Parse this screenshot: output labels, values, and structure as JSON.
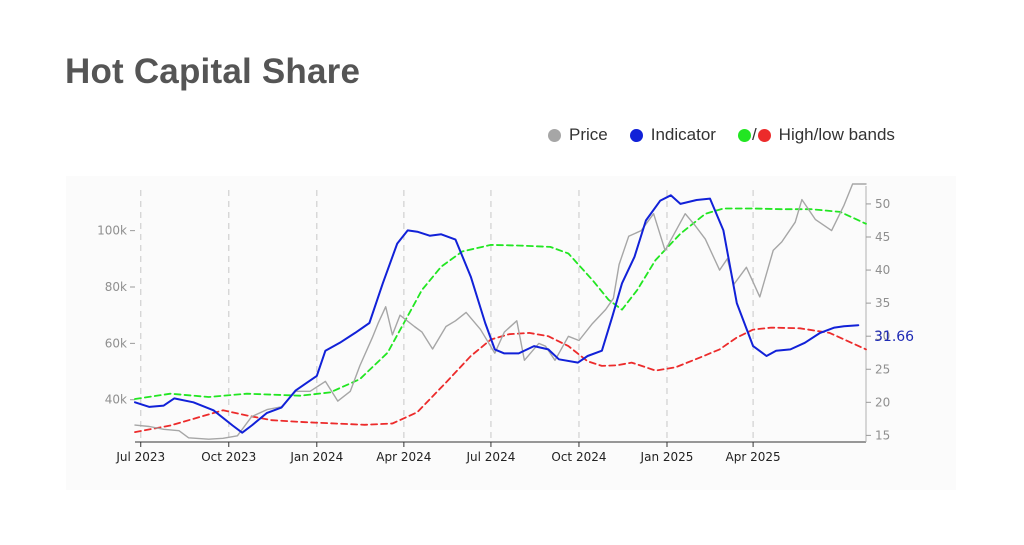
{
  "page": {
    "title": "Hot Capital Share"
  },
  "legend": {
    "price": {
      "label": "Price",
      "color": "#a6a6a6"
    },
    "indicator": {
      "label": "Indicator",
      "color": "#1121d8"
    },
    "bands": {
      "label": "High/low bands",
      "slash": "/",
      "high_color": "#22e622",
      "low_color": "#ec2b2b"
    }
  },
  "chart_data": {
    "type": "line",
    "title": "Hot Capital Share",
    "x_range": [
      "2023-06-25",
      "2025-07-28"
    ],
    "x_ticks": [
      {
        "date": "2023-07-01",
        "label": "Jul 2023"
      },
      {
        "date": "2023-10-01",
        "label": "Oct 2023"
      },
      {
        "date": "2024-01-01",
        "label": "Jan 2024"
      },
      {
        "date": "2024-04-01",
        "label": "Apr 2024"
      },
      {
        "date": "2024-07-01",
        "label": "Jul 2024"
      },
      {
        "date": "2024-10-01",
        "label": "Oct 2024"
      },
      {
        "date": "2025-01-01",
        "label": "Jan 2025"
      },
      {
        "date": "2025-04-01",
        "label": "Apr 2025"
      }
    ],
    "y_left": {
      "label": "Price",
      "range": [
        25000,
        113000
      ],
      "ticks": [
        40000,
        60000,
        80000,
        100000
      ],
      "tick_labels": [
        "40k",
        "60k",
        "80k",
        "100k"
      ]
    },
    "y_right": {
      "label": "Indicator",
      "range": [
        14,
        51.5
      ],
      "ticks": [
        15,
        20,
        25,
        30,
        35,
        40,
        45,
        50
      ],
      "tick_labels": [
        "15",
        "20",
        "25",
        "30",
        "35",
        "40",
        "45",
        "50"
      ]
    },
    "grid": "vertical dashed at x ticks",
    "last_value_label": "31.66",
    "series": [
      {
        "name": "Price",
        "axis": "left",
        "color": "#a6a6a6",
        "style": "solid",
        "points": [
          [
            "2023-06-25",
            31000
          ],
          [
            "2023-07-10",
            30500
          ],
          [
            "2023-07-25",
            29500
          ],
          [
            "2023-08-10",
            29000
          ],
          [
            "2023-08-20",
            26500
          ],
          [
            "2023-09-10",
            26000
          ],
          [
            "2023-09-25",
            26300
          ],
          [
            "2023-10-10",
            27200
          ],
          [
            "2023-10-25",
            34000
          ],
          [
            "2023-11-10",
            36500
          ],
          [
            "2023-11-25",
            37500
          ],
          [
            "2023-12-10",
            43000
          ],
          [
            "2023-12-25",
            43000
          ],
          [
            "2024-01-10",
            46500
          ],
          [
            "2024-01-23",
            39500
          ],
          [
            "2024-02-05",
            43000
          ],
          [
            "2024-02-15",
            52000
          ],
          [
            "2024-02-28",
            62000
          ],
          [
            "2024-03-05",
            67000
          ],
          [
            "2024-03-13",
            73000
          ],
          [
            "2024-03-20",
            63000
          ],
          [
            "2024-03-28",
            70000
          ],
          [
            "2024-04-12",
            66000
          ],
          [
            "2024-04-20",
            64000
          ],
          [
            "2024-05-01",
            58000
          ],
          [
            "2024-05-15",
            66000
          ],
          [
            "2024-05-25",
            68000
          ],
          [
            "2024-06-05",
            71000
          ],
          [
            "2024-06-20",
            65000
          ],
          [
            "2024-07-05",
            56500
          ],
          [
            "2024-07-15",
            64000
          ],
          [
            "2024-07-28",
            68000
          ],
          [
            "2024-08-05",
            54000
          ],
          [
            "2024-08-20",
            60000
          ],
          [
            "2024-08-27",
            59000
          ],
          [
            "2024-09-06",
            54000
          ],
          [
            "2024-09-20",
            62500
          ],
          [
            "2024-10-01",
            61000
          ],
          [
            "2024-10-15",
            67000
          ],
          [
            "2024-10-29",
            72000
          ],
          [
            "2024-11-06",
            76000
          ],
          [
            "2024-11-12",
            88000
          ],
          [
            "2024-11-22",
            98000
          ],
          [
            "2024-12-05",
            100000
          ],
          [
            "2024-12-18",
            106000
          ],
          [
            "2024-12-30",
            93000
          ],
          [
            "2025-01-20",
            106000
          ],
          [
            "2025-01-30",
            102000
          ],
          [
            "2025-02-10",
            97000
          ],
          [
            "2025-02-25",
            86000
          ],
          [
            "2025-03-05",
            90000
          ],
          [
            "2025-03-12",
            81000
          ],
          [
            "2025-03-25",
            87000
          ],
          [
            "2025-04-08",
            76500
          ],
          [
            "2025-04-22",
            93000
          ],
          [
            "2025-05-01",
            96000
          ],
          [
            "2025-05-15",
            103000
          ],
          [
            "2025-05-22",
            111000
          ],
          [
            "2025-06-05",
            104000
          ],
          [
            "2025-06-22",
            100000
          ],
          [
            "2025-07-05",
            109000
          ],
          [
            "2025-07-14",
            118000
          ],
          [
            "2025-07-22",
            118000
          ],
          [
            "2025-07-28",
            118000
          ]
        ]
      },
      {
        "name": "Indicator",
        "axis": "right",
        "color": "#1121d8",
        "style": "solid",
        "points": [
          [
            "2023-06-25",
            20.0
          ],
          [
            "2023-07-10",
            19.3
          ],
          [
            "2023-07-25",
            19.5
          ],
          [
            "2023-08-05",
            20.6
          ],
          [
            "2023-08-25",
            20.0
          ],
          [
            "2023-09-15",
            18.8
          ],
          [
            "2023-10-05",
            16.5
          ],
          [
            "2023-10-15",
            15.4
          ],
          [
            "2023-10-25",
            16.5
          ],
          [
            "2023-11-10",
            18.4
          ],
          [
            "2023-11-25",
            19.2
          ],
          [
            "2023-12-10",
            21.8
          ],
          [
            "2024-01-01",
            24.0
          ],
          [
            "2024-01-10",
            27.8
          ],
          [
            "2024-01-25",
            29.0
          ],
          [
            "2024-02-10",
            30.5
          ],
          [
            "2024-02-25",
            32.0
          ],
          [
            "2024-03-10",
            38.0
          ],
          [
            "2024-03-25",
            44.0
          ],
          [
            "2024-04-05",
            46.0
          ],
          [
            "2024-04-15",
            45.8
          ],
          [
            "2024-04-28",
            45.2
          ],
          [
            "2024-05-10",
            45.4
          ],
          [
            "2024-05-25",
            44.6
          ],
          [
            "2024-06-10",
            39.0
          ],
          [
            "2024-06-25",
            32.0
          ],
          [
            "2024-07-05",
            28.0
          ],
          [
            "2024-07-15",
            27.4
          ],
          [
            "2024-07-30",
            27.4
          ],
          [
            "2024-08-15",
            28.5
          ],
          [
            "2024-08-30",
            28.0
          ],
          [
            "2024-09-10",
            26.5
          ],
          [
            "2024-09-30",
            26.0
          ],
          [
            "2024-10-10",
            27.0
          ],
          [
            "2024-10-25",
            27.8
          ],
          [
            "2024-11-05",
            33.0
          ],
          [
            "2024-11-15",
            38.0
          ],
          [
            "2024-11-28",
            42.0
          ],
          [
            "2024-12-10",
            47.5
          ],
          [
            "2024-12-25",
            50.5
          ],
          [
            "2025-01-05",
            51.3
          ],
          [
            "2025-01-15",
            50.0
          ],
          [
            "2025-02-01",
            50.6
          ],
          [
            "2025-02-15",
            50.8
          ],
          [
            "2025-03-01",
            46.0
          ],
          [
            "2025-03-15",
            35.0
          ],
          [
            "2025-04-01",
            28.5
          ],
          [
            "2025-04-15",
            27.0
          ],
          [
            "2025-04-25",
            27.8
          ],
          [
            "2025-05-10",
            28.0
          ],
          [
            "2025-05-25",
            29.0
          ],
          [
            "2025-06-10",
            30.5
          ],
          [
            "2025-06-25",
            31.3
          ],
          [
            "2025-07-05",
            31.5
          ],
          [
            "2025-07-20",
            31.66
          ]
        ]
      },
      {
        "name": "High band",
        "axis": "right",
        "color": "#22e622",
        "style": "dashed",
        "points": [
          [
            "2023-06-25",
            20.5
          ],
          [
            "2023-08-01",
            21.3
          ],
          [
            "2023-09-10",
            20.8
          ],
          [
            "2023-10-20",
            21.3
          ],
          [
            "2023-12-15",
            21.0
          ],
          [
            "2024-01-15",
            21.5
          ],
          [
            "2024-02-15",
            23.5
          ],
          [
            "2024-03-15",
            27.5
          ],
          [
            "2024-04-01",
            32.0
          ],
          [
            "2024-04-20",
            37.0
          ],
          [
            "2024-05-10",
            40.5
          ],
          [
            "2024-06-01",
            42.8
          ],
          [
            "2024-07-01",
            43.8
          ],
          [
            "2024-08-01",
            43.7
          ],
          [
            "2024-09-01",
            43.5
          ],
          [
            "2024-09-20",
            42.5
          ],
          [
            "2024-10-15",
            38.5
          ],
          [
            "2024-11-01",
            35.5
          ],
          [
            "2024-11-15",
            34.0
          ],
          [
            "2024-12-01",
            37.0
          ],
          [
            "2024-12-20",
            41.5
          ],
          [
            "2025-01-15",
            45.5
          ],
          [
            "2025-02-10",
            48.5
          ],
          [
            "2025-03-01",
            49.3
          ],
          [
            "2025-04-01",
            49.3
          ],
          [
            "2025-05-01",
            49.2
          ],
          [
            "2025-06-01",
            49.2
          ],
          [
            "2025-07-01",
            48.8
          ],
          [
            "2025-07-28",
            47.0
          ]
        ]
      },
      {
        "name": "Low band",
        "axis": "right",
        "color": "#ec2b2b",
        "style": "dashed",
        "points": [
          [
            "2023-06-25",
            15.5
          ],
          [
            "2023-08-01",
            16.5
          ],
          [
            "2023-09-01",
            17.8
          ],
          [
            "2023-09-25",
            18.8
          ],
          [
            "2023-10-20",
            18.0
          ],
          [
            "2023-11-15",
            17.3
          ],
          [
            "2023-12-20",
            17.0
          ],
          [
            "2024-01-20",
            16.8
          ],
          [
            "2024-02-20",
            16.6
          ],
          [
            "2024-03-20",
            16.8
          ],
          [
            "2024-04-15",
            18.5
          ],
          [
            "2024-05-15",
            23.0
          ],
          [
            "2024-06-10",
            27.0
          ],
          [
            "2024-07-01",
            29.5
          ],
          [
            "2024-07-20",
            30.3
          ],
          [
            "2024-08-10",
            30.5
          ],
          [
            "2024-08-30",
            30.0
          ],
          [
            "2024-09-20",
            28.5
          ],
          [
            "2024-10-10",
            26.2
          ],
          [
            "2024-10-25",
            25.5
          ],
          [
            "2024-11-10",
            25.6
          ],
          [
            "2024-11-25",
            26.0
          ],
          [
            "2024-12-10",
            25.3
          ],
          [
            "2024-12-20",
            24.8
          ],
          [
            "2025-01-10",
            25.3
          ],
          [
            "2025-02-05",
            26.8
          ],
          [
            "2025-02-25",
            28.0
          ],
          [
            "2025-03-15",
            29.8
          ],
          [
            "2025-04-01",
            31.0
          ],
          [
            "2025-04-20",
            31.3
          ],
          [
            "2025-05-20",
            31.2
          ],
          [
            "2025-06-20",
            30.5
          ],
          [
            "2025-07-28",
            28.0
          ]
        ]
      }
    ]
  }
}
